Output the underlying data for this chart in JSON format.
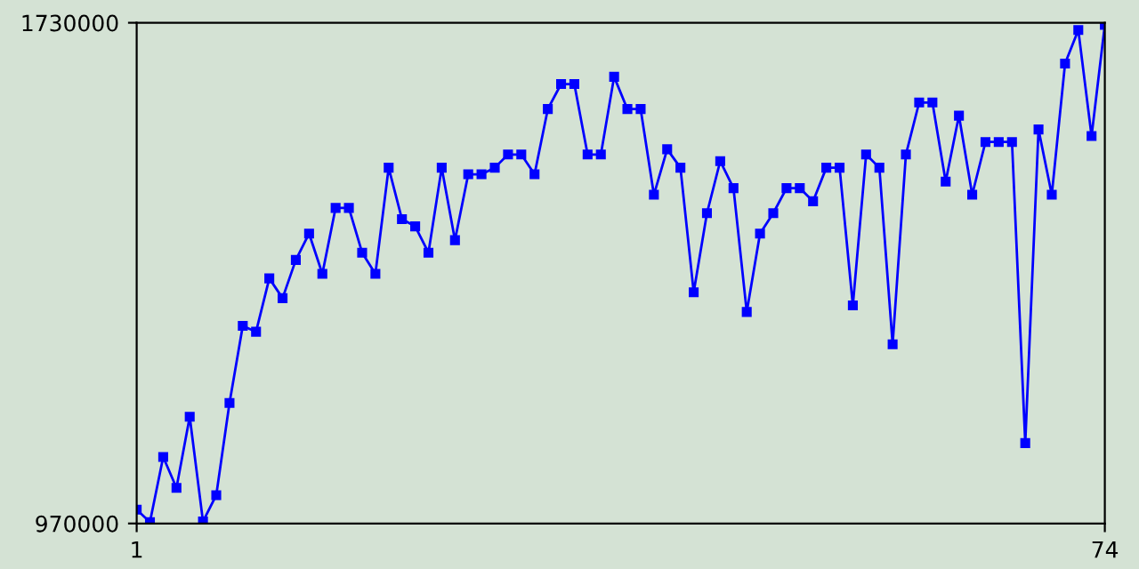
{
  "chart_data": {
    "type": "line",
    "x": [
      1,
      2,
      3,
      4,
      5,
      6,
      7,
      8,
      9,
      10,
      11,
      12,
      13,
      14,
      15,
      16,
      17,
      18,
      19,
      20,
      21,
      22,
      23,
      24,
      25,
      26,
      27,
      28,
      29,
      30,
      31,
      32,
      33,
      34,
      35,
      36,
      37,
      38,
      39,
      40,
      41,
      42,
      43,
      44,
      45,
      46,
      47,
      48,
      49,
      50,
      51,
      52,
      53,
      54,
      55,
      56,
      57,
      58,
      59,
      60,
      61,
      62,
      63,
      64,
      65,
      66,
      67,
      68,
      69,
      70,
      71,
      72,
      73,
      74
    ],
    "series": [
      {
        "color": "#0000ff",
        "values": [
          991000,
          972000,
          1071000,
          1024000,
          1132000,
          973000,
          1013000,
          1153000,
          1270000,
          1261000,
          1342000,
          1312000,
          1370000,
          1410000,
          1349000,
          1449000,
          1449000,
          1381000,
          1349000,
          1510000,
          1432000,
          1421000,
          1381000,
          1510000,
          1400000,
          1500000,
          1500000,
          1510000,
          1530000,
          1530000,
          1500000,
          1599000,
          1637000,
          1637000,
          1530000,
          1530000,
          1648000,
          1599000,
          1599000,
          1469000,
          1538000,
          1510000,
          1321000,
          1441000,
          1520000,
          1479000,
          1291000,
          1410000,
          1441000,
          1479000,
          1479000,
          1459000,
          1510000,
          1510000,
          1301000,
          1530000,
          1510000,
          1242000,
          1530000,
          1609000,
          1609000,
          1489000,
          1589000,
          1469000,
          1549000,
          1549000,
          1549000,
          1092000,
          1568000,
          1469000,
          1668000,
          1719000,
          1558000,
          1727000
        ]
      }
    ],
    "xlim": [
      1,
      74
    ],
    "xticks": [
      1,
      74
    ],
    "ylim": [
      970000,
      1730000
    ],
    "yticks": [
      970000,
      1730000
    ],
    "marker": "square",
    "line_style": "solid",
    "grid": false
  }
}
